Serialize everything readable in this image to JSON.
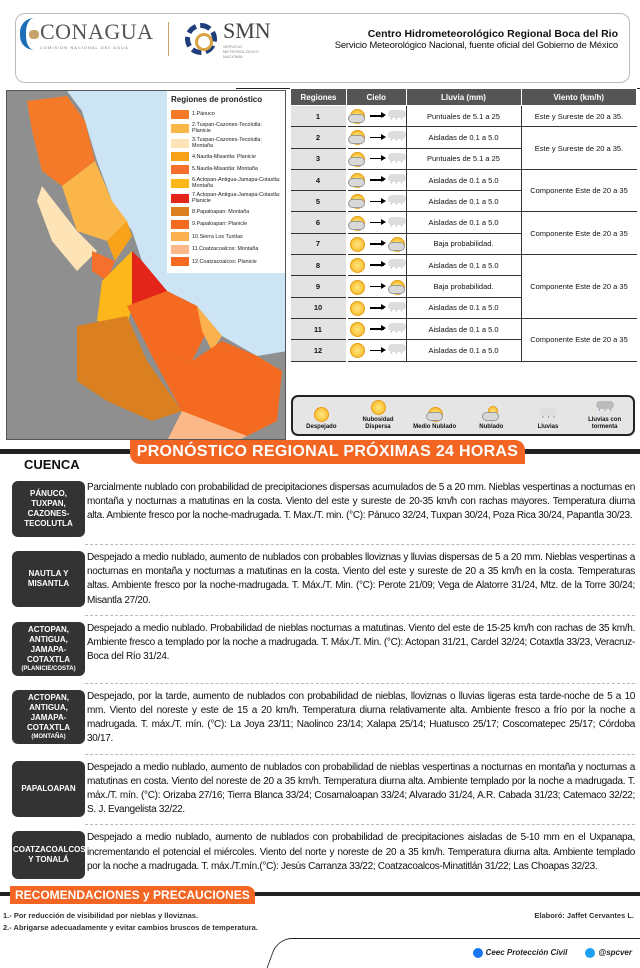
{
  "header": {
    "org1": "CONAGUA",
    "org1_sub": "COMISIÓN NACIONAL DEL AGUA",
    "org2": "SMN",
    "org2_sub": "SERVICIO METEOROLÓGICO NACIONAL",
    "title": "Centro Hidrometeorológico Regional Boca del Rio",
    "subtitle": "Servicio Meteorológico Nacional, fuente oficial del Gobierno de México"
  },
  "map": {
    "legend_title": "Regiones de pronóstico",
    "legend": [
      {
        "label": "1.Pánuco",
        "color": "#f47a2a"
      },
      {
        "label": "2.Tuxpan-Cazones-Tecolutla: Planicie",
        "color": "#fbb64a"
      },
      {
        "label": "3.Tuxpan-Cazones-Tecolutla: Montaña",
        "color": "#fde3b6"
      },
      {
        "label": "4.Nautla-Misantla: Planicie",
        "color": "#f9a31a"
      },
      {
        "label": "5.Nautla-Misantla: Montaña",
        "color": "#f4702c"
      },
      {
        "label": "6.Actopan-Antigua-Jamapa-Cotaxtla: Montaña",
        "color": "#fcb71a"
      },
      {
        "label": "7.Actopan-Antigua-Jamapa-Cotaxtla: Planicie",
        "color": "#e3251a"
      },
      {
        "label": "8.Papaloapan: Montaña",
        "color": "#da8020"
      },
      {
        "label": "9.Papaloapan: Planicie",
        "color": "#f46a20"
      },
      {
        "label": "10.Sierra Los Tuxtlas",
        "color": "#fbb24e"
      },
      {
        "label": "11.Coatzacoalcos: Montaña",
        "color": "#fbb98a"
      },
      {
        "label": "12.Coatzacoalcos: Planicie",
        "color": "#f46a20"
      }
    ]
  },
  "table": {
    "headers": [
      "Regiones",
      "Cielo",
      "Lluvia (mm)",
      "Viento (km/h)"
    ],
    "rows": [
      {
        "region": "1",
        "from": "medio-nublado",
        "to": "lluvias",
        "rain": "Puntuales de 5.1 a 25"
      },
      {
        "region": "2",
        "from": "medio-nublado",
        "to": "lluvias",
        "rain": "Aisladas de 0.1 a 5.0"
      },
      {
        "region": "3",
        "from": "medio-nublado",
        "to": "lluvias",
        "rain": "Puntuales de 5.1 a 25"
      },
      {
        "region": "4",
        "from": "medio-nublado",
        "to": "lluvias",
        "rain": "Aisladas de 0.1 a 5.0"
      },
      {
        "region": "5",
        "from": "medio-nublado",
        "to": "lluvias",
        "rain": "Aisladas de 0.1 a 5.0"
      },
      {
        "region": "6",
        "from": "medio-nublado",
        "to": "lluvias",
        "rain": "Aisladas de 0.1 a 5.0"
      },
      {
        "region": "7",
        "from": "despejado",
        "to": "medio-nublado",
        "rain": "Baja probabilidad."
      },
      {
        "region": "8",
        "from": "despejado",
        "to": "lluvias",
        "rain": "Aisladas de 0.1 a 5.0"
      },
      {
        "region": "9",
        "from": "despejado",
        "to": "medio-nublado",
        "rain": "Baja probabilidad."
      },
      {
        "region": "10",
        "from": "despejado",
        "to": "lluvias",
        "rain": "Aisladas de 0.1 a 5.0"
      },
      {
        "region": "11",
        "from": "despejado",
        "to": "lluvias",
        "rain": "Aisladas de 0.1 a 5.0"
      },
      {
        "region": "12",
        "from": "despejado",
        "to": "lluvias",
        "rain": "Aisladas de 0.1 a 5.0"
      }
    ],
    "wind": [
      "Este y Sureste de 20 a 35.",
      "Este y Sureste de 20 a 35.",
      "Componente Este de 20 a 35",
      "Componente Este de 20 a 35",
      "Componente Este de 20 a 35",
      "Componente Este de 20 a 35"
    ]
  },
  "sky_legend": [
    "Despejado",
    "Nubosidad Dispersa",
    "Medio Nublado",
    "Nublado",
    "Lluvias",
    "Lluvias con tormenta"
  ],
  "title": "PRONÓSTICO REGIONAL PRÓXIMAS 24 HORAS",
  "cuenca": "CUENCA",
  "sections": [
    {
      "label": "PÁNUCO, TUXPAN, CAZONES-TECOLUTLA",
      "sub": "",
      "text": "Parcialmente nublado con probabilidad de precipitaciones dispersas acumulados de 5 a 20 mm. Nieblas vespertinas a nocturnas en montaña y nocturnas a matutinas en la costa. Viento del este y sureste de 20-35 km/h con rachas mayores. Temperatura diurna alta. Ambiente fresco por la noche-madrugada. T. Max./T. min. (°C): Pánuco 32/24, Tuxpan 30/24, Poza Rica 30/24, Papantla 30/23."
    },
    {
      "label": "NAUTLA Y MISANTLA",
      "sub": "",
      "text": "Despejado a medio nublado, aumento de nublados con probables lloviznas y lluvias dispersas de 5 a 20 mm. Nieblas vespertinas a nocturnas en montaña y nocturnas a matutinas en la costa. Viento del este y sureste de 20 a 35 km/h en la costa. Temperaturas altas. Ambiente fresco por la noche-madrugada. T. Máx./T. Min. (°C): Perote 21/09; Vega de Alatorre 31/24, Mtz. de la Torre 30/24; Misantla 27/20."
    },
    {
      "label": "ACTOPAN, ANTIGUA, JAMAPA-COTAXTLA",
      "sub": "(PLANICIE/COSTA)",
      "text": "Despejado a medio nublado. Probabilidad de nieblas nocturnas a matutinas. Viento del este de 15-25 km/h con rachas de 35 km/h. Ambiente fresco a templado por la noche a madrugada. T. Máx./T. Min. (°C): Actopan 31/21, Cardel 32/24; Cotaxtla 33/23, Veracruz-Boca del Río 31/24."
    },
    {
      "label": "ACTOPAN, ANTIGUA, JAMAPA-COTAXTLA",
      "sub": "(MONTAÑA)",
      "text": "Despejado, por la tarde, aumento de nublados con probabilidad de nieblas, lloviznas o lluvias ligeras esta tarde-noche de 5 a 10 mm. Viento del noreste y este de 15 a 20 km/h. Temperatura diurna relativamente alta. Ambiente fresco a frío por la noche a madrugada. T. máx./T. mín. (°C): La Joya 23/11; Naolinco 23/14; Xalapa 25/14; Huatusco 25/17; Coscomatepec 25/17; Córdoba 30/17."
    },
    {
      "label": "PAPALOAPAN",
      "sub": "",
      "text": "Despejado a medio nublado, aumento de nublados con probabilidad de nieblas vespertinas a nocturnas en montaña y nocturnas a matutinas en costa.  Viento del noreste de 20 a 35 km/h. Temperatura diurna alta. Ambiente templado por la noche a madrugada. T. máx./T. mín. (°C): Orizaba 27/16; Tierra Blanca 33/24; Cosamaloapan 33/24; Alvarado 31/24, A.R. Cabada 31/23; Catemaco 32/22; S. J. Evangelista 32/22."
    },
    {
      "label": "COATZACOALCOS Y TONALÁ",
      "sub": "",
      "text": "Despejado a medio nublado, aumento de nublados con probabilidad de precipitaciones aisladas de 5-10 mm en el Uxpanapa, incrementando el potencial el miércoles.  Viento del norte y noreste de 20 a 35 km/h. Temperatura diurna alta. Ambiente templado por la noche a madrugada. T. máx./T.mín.(°C): Jesús Carranza 33/22; Coatzacoalcos-Minatitlán 31/22; Las Choapas 32/23."
    }
  ],
  "recommendations": {
    "title": "RECOMENDACIONES y PRECAUCIONES",
    "items": [
      "1.- Por reducción de visibilidad por nieblas y lloviznas.",
      "2.- Abrigarse adecuadamente y evitar cambios bruscos de temperatura."
    ],
    "author": "Elaboró: Jaffet Cervantes L."
  },
  "footer": {
    "facebook": "Ceec Protección Civil",
    "twitter": "@spcver"
  }
}
